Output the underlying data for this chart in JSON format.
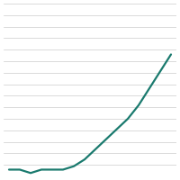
{
  "years": [
    2008,
    2009,
    2010,
    2011,
    2012,
    2013,
    2014,
    2015,
    2016,
    2017,
    2018,
    2019,
    2020,
    2021,
    2022,
    2023
  ],
  "values": [
    2,
    2,
    1,
    2,
    2,
    2,
    3,
    5,
    8,
    11,
    14,
    17,
    21,
    26,
    31,
    36
  ],
  "line_color": "#1a7a6e",
  "line_width": 1.6,
  "background_color": "#ffffff",
  "grid_color": "#cccccc",
  "ylim": [
    0,
    51
  ],
  "xlim": [
    2007.5,
    2023.5
  ],
  "yticks": [
    0,
    3.4,
    6.8,
    10.2,
    13.6,
    17.0,
    20.4,
    23.8,
    27.2,
    30.6,
    34.0,
    37.4,
    40.8,
    44.2,
    47.6,
    51.0
  ],
  "grid_linewidth": 0.5,
  "figsize": [
    2.0,
    2.0
  ],
  "dpi": 100
}
